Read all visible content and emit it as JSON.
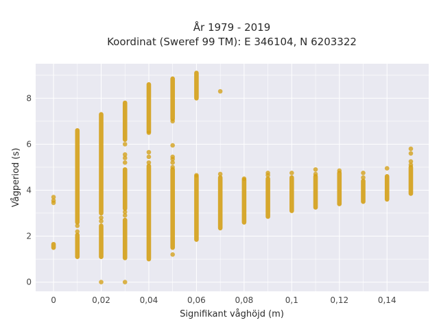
{
  "chart_data": {
    "type": "scatter",
    "title": "År 1979 - 2019",
    "subtitle": "Koordinat (Sweref 99 TM): E 346104, N 6203322",
    "xlabel": "Signifikant våghöjd (m)",
    "ylabel": "Vågperiod (s)",
    "xlim": [
      -0.0075,
      0.1575
    ],
    "ylim": [
      -0.4,
      9.5
    ],
    "xticks": [
      0,
      0.02,
      0.04,
      0.06,
      0.08,
      0.1,
      0.12,
      0.14
    ],
    "xtick_labels": [
      "0",
      "0,02",
      "0,04",
      "0,06",
      "0,08",
      "0,1",
      "0,12",
      "0,14"
    ],
    "yticks": [
      0,
      2,
      4,
      6,
      8
    ],
    "ytick_labels": [
      "0",
      "2",
      "4",
      "6",
      "8"
    ],
    "grid": true,
    "colors": {
      "marker": "#D4A017",
      "background": "#E9E9F1",
      "grid": "#FFFFFF"
    },
    "series": [
      {
        "segments": [
          {
            "x": 0.0,
            "y_min": 1.5,
            "y_max": 1.65
          },
          {
            "x": 0.01,
            "y_min": 1.1,
            "y_max": 2.05
          },
          {
            "x": 0.01,
            "y_min": 2.6,
            "y_max": 6.6
          },
          {
            "x": 0.02,
            "y_min": 1.1,
            "y_max": 2.45
          },
          {
            "x": 0.02,
            "y_min": 3.0,
            "y_max": 7.3
          },
          {
            "x": 0.03,
            "y_min": 1.05,
            "y_max": 2.7
          },
          {
            "x": 0.03,
            "y_min": 3.2,
            "y_max": 4.9
          },
          {
            "x": 0.03,
            "y_min": 6.2,
            "y_max": 7.8
          },
          {
            "x": 0.04,
            "y_min": 1.0,
            "y_max": 5.05
          },
          {
            "x": 0.04,
            "y_min": 6.55,
            "y_max": 8.6
          },
          {
            "x": 0.05,
            "y_min": 1.5,
            "y_max": 4.9
          },
          {
            "x": 0.05,
            "y_min": 7.1,
            "y_max": 8.85
          },
          {
            "x": 0.06,
            "y_min": 1.85,
            "y_max": 4.6
          },
          {
            "x": 0.06,
            "y_min": 8.0,
            "y_max": 9.1
          },
          {
            "x": 0.07,
            "y_min": 2.35,
            "y_max": 4.55
          },
          {
            "x": 0.08,
            "y_min": 2.6,
            "y_max": 4.45
          },
          {
            "x": 0.09,
            "y_min": 2.85,
            "y_max": 4.5
          },
          {
            "x": 0.1,
            "y_min": 3.1,
            "y_max": 4.55
          },
          {
            "x": 0.11,
            "y_min": 3.25,
            "y_max": 4.6
          },
          {
            "x": 0.12,
            "y_min": 3.4,
            "y_max": 4.75
          },
          {
            "x": 0.13,
            "y_min": 3.5,
            "y_max": 4.4
          },
          {
            "x": 0.14,
            "y_min": 3.6,
            "y_max": 4.6
          },
          {
            "x": 0.15,
            "y_min": 3.85,
            "y_max": 5.0
          }
        ],
        "points": [
          [
            0.0,
            3.45
          ],
          [
            0.0,
            3.55
          ],
          [
            0.0,
            3.7
          ],
          [
            0.01,
            2.45
          ],
          [
            0.01,
            2.2
          ],
          [
            0.02,
            0.0
          ],
          [
            0.02,
            2.65
          ],
          [
            0.02,
            2.8
          ],
          [
            0.03,
            0.0
          ],
          [
            0.03,
            2.9
          ],
          [
            0.03,
            3.05
          ],
          [
            0.03,
            5.2
          ],
          [
            0.03,
            5.4
          ],
          [
            0.03,
            5.55
          ],
          [
            0.03,
            6.0
          ],
          [
            0.04,
            5.2
          ],
          [
            0.04,
            5.45
          ],
          [
            0.04,
            5.65
          ],
          [
            0.04,
            6.5
          ],
          [
            0.05,
            1.2
          ],
          [
            0.05,
            5.0
          ],
          [
            0.05,
            5.2
          ],
          [
            0.05,
            5.35
          ],
          [
            0.05,
            5.45
          ],
          [
            0.05,
            5.95
          ],
          [
            0.05,
            7.0
          ],
          [
            0.06,
            4.65
          ],
          [
            0.07,
            4.7
          ],
          [
            0.07,
            8.3
          ],
          [
            0.08,
            4.5
          ],
          [
            0.09,
            4.65
          ],
          [
            0.09,
            4.75
          ],
          [
            0.1,
            4.75
          ],
          [
            0.11,
            4.7
          ],
          [
            0.11,
            4.9
          ],
          [
            0.12,
            4.85
          ],
          [
            0.13,
            4.55
          ],
          [
            0.13,
            4.75
          ],
          [
            0.14,
            4.95
          ],
          [
            0.15,
            5.1
          ],
          [
            0.15,
            5.25
          ],
          [
            0.15,
            5.6
          ],
          [
            0.15,
            5.8
          ]
        ]
      }
    ]
  }
}
